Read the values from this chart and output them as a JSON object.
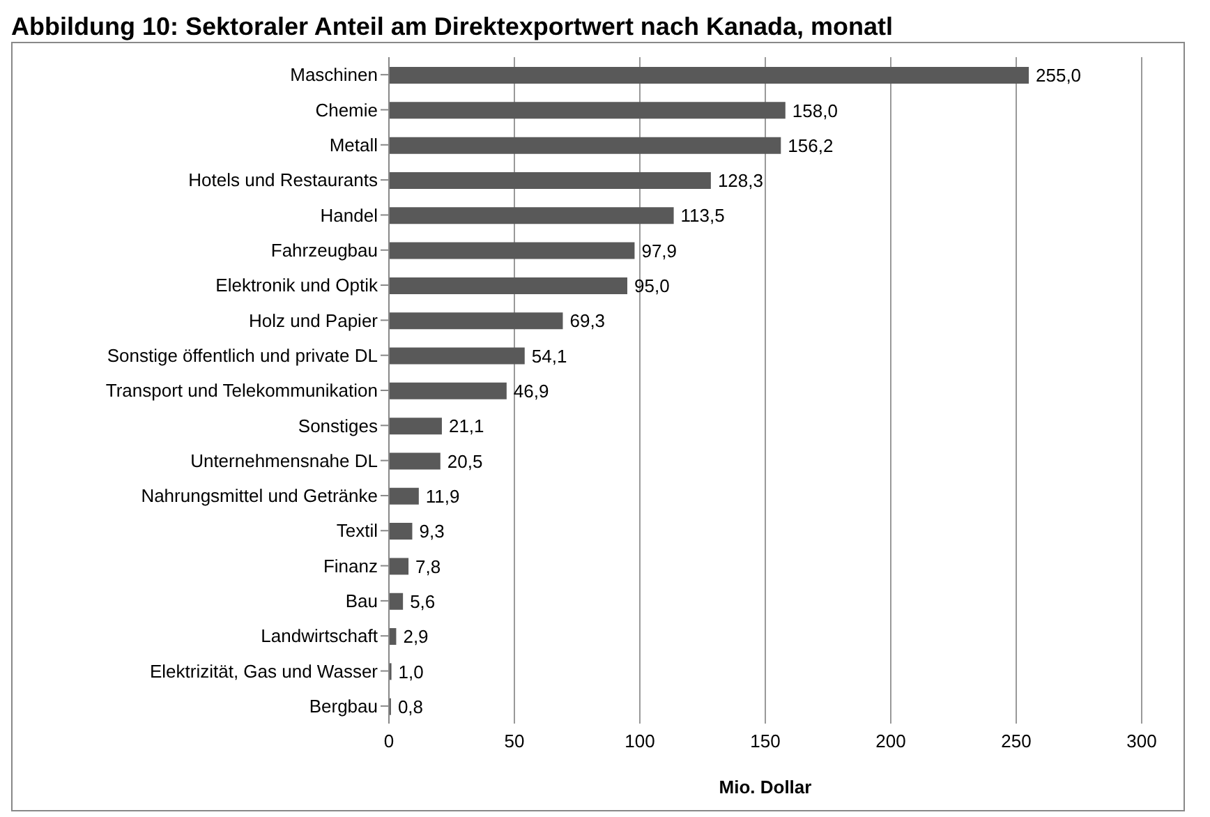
{
  "chart_data": {
    "type": "bar",
    "orientation": "horizontal",
    "title": "Abbildung 10: Sektoraler Anteil am Direktexportwert nach Kanada, monatl",
    "xlabel": "Mio. Dollar",
    "categories": [
      "Maschinen",
      "Chemie",
      "Metall",
      "Hotels und Restaurants",
      "Handel",
      "Fahrzeugbau",
      "Elektronik und Optik",
      "Holz und Papier",
      "Sonstige öffentlich und private DL",
      "Transport und Telekommunikation",
      "Sonstiges",
      "Unternehmensnahe DL",
      "Nahrungsmittel und Getränke",
      "Textil",
      "Finanz",
      "Bau",
      "Landwirtschaft",
      "Elektrizität, Gas und Wasser",
      "Bergbau"
    ],
    "values": [
      255.0,
      158.0,
      156.2,
      128.3,
      113.5,
      97.9,
      95.0,
      69.3,
      54.1,
      46.9,
      21.1,
      20.5,
      11.9,
      9.3,
      7.8,
      5.6,
      2.9,
      1.0,
      0.8
    ],
    "value_labels": [
      "255,0",
      "158,0",
      "156,2",
      "128,3",
      "113,5",
      "97,9",
      "95,0",
      "69,3",
      "54,1",
      "46,9",
      "21,1",
      "20,5",
      "11,9",
      "9,3",
      "7,8",
      "5,6",
      "2,9",
      "1,0",
      "0,8"
    ],
    "color": "#595959",
    "xlim": [
      0,
      300
    ],
    "xticks": [
      0,
      50,
      100,
      150,
      200,
      250,
      300
    ],
    "grid": "x",
    "legend": false
  }
}
